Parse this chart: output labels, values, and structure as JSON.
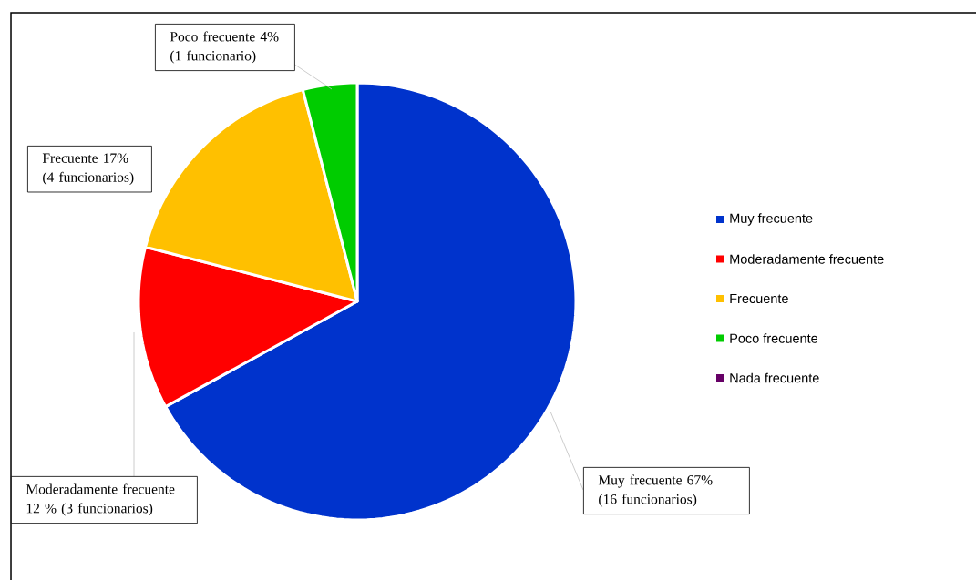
{
  "chart_data": {
    "type": "pie",
    "categories": [
      "Muy frecuente",
      "Moderadamente frecuente",
      "Frecuente",
      "Poco frecuente",
      "Nada frecuente"
    ],
    "values": [
      67,
      12,
      17,
      4,
      0
    ],
    "colors": [
      "#0033cc",
      "#ff0000",
      "#ffc000",
      "#00cc00",
      "#660066"
    ],
    "value_labels": [
      "Muy frecuente 67% (16 funcionarios)",
      "Moderadamente frecuente 12 % (3 funcionarios)",
      "Frecuente 17% (4 funcionarios)",
      "Poco frecuente 4% (1 funcionario)",
      null
    ],
    "legend": "right"
  }
}
